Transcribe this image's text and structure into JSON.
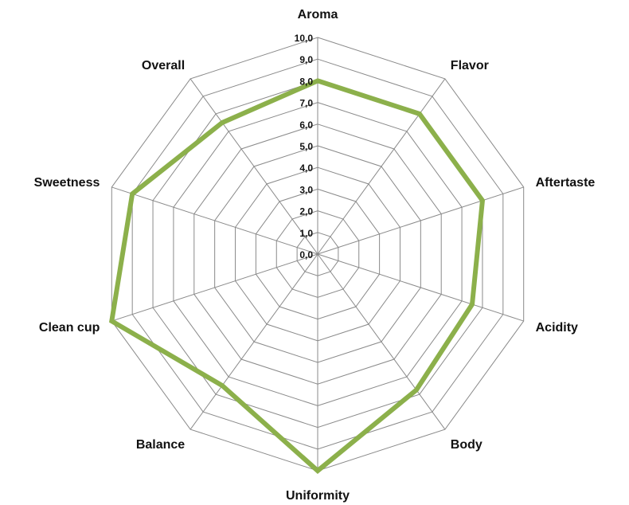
{
  "chart_data": {
    "type": "radar",
    "categories": [
      "Aroma",
      "Flavor",
      "Aftertaste",
      "Acidity",
      "Body",
      "Uniformity",
      "Balance",
      "Clean cup",
      "Sweetness",
      "Overall"
    ],
    "series": [
      {
        "values": [
          8.0,
          8.0,
          8.0,
          7.5,
          7.75,
          10.0,
          7.5,
          10.0,
          9.0,
          7.5
        ],
        "color": "#8cb04b"
      }
    ],
    "ticks": [
      "0,0",
      "1,0",
      "2,0",
      "3,0",
      "4,0",
      "5,0",
      "6,0",
      "7,0",
      "8,0",
      "9,0",
      "10,0"
    ],
    "rlim": [
      0,
      10
    ],
    "grid": true,
    "gridColor": "#8a8a8a",
    "legend": "none"
  }
}
